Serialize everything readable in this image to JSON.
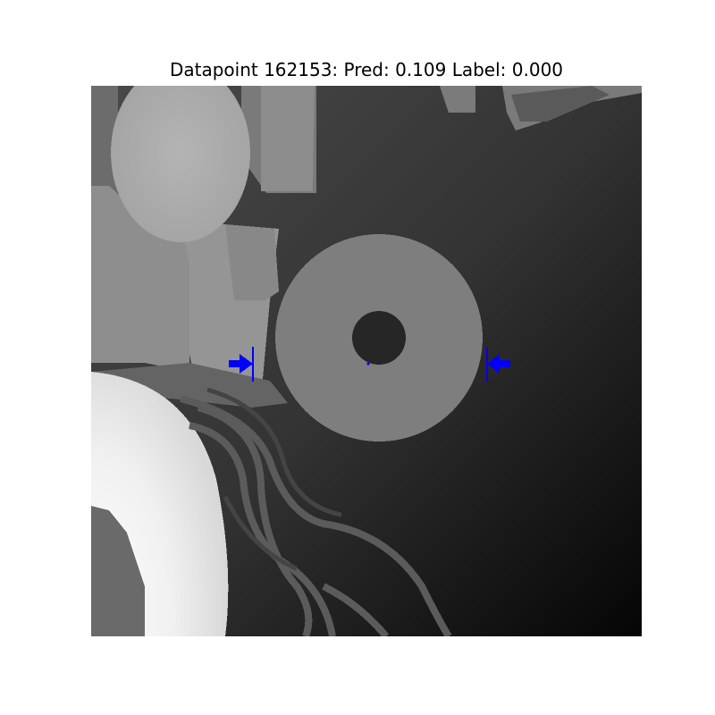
{
  "figure": {
    "title": "Datapoint 162153: Pred: 0.109 Label: 0.000"
  },
  "image": {
    "kind": "depth-image",
    "colormap": "grayscale",
    "marker_color": "#0000ff",
    "description_objects": [
      "donut-shaped-object",
      "background-objects",
      "cable-strands"
    ]
  },
  "markers": {
    "left_arrow_direction": "right",
    "right_arrow_direction": "left"
  }
}
